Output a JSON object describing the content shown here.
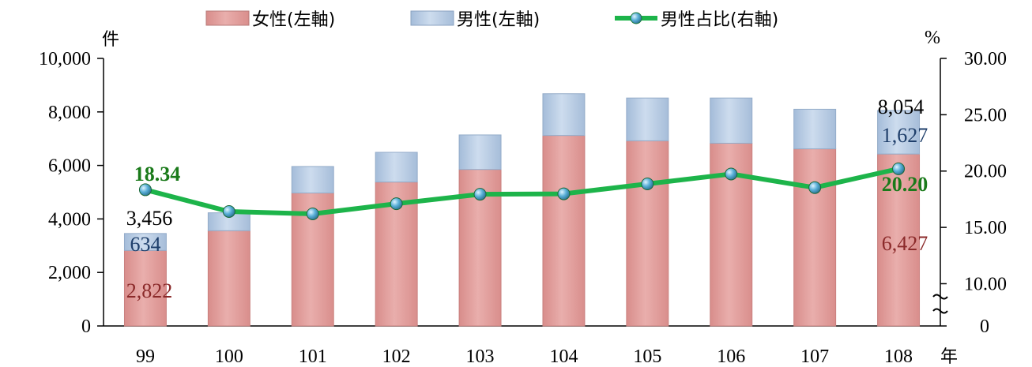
{
  "chart_data": {
    "type": "bar",
    "categories": [
      "99",
      "100",
      "101",
      "102",
      "103",
      "104",
      "105",
      "106",
      "107",
      "108"
    ],
    "series": [
      {
        "name": "女性(左軸)",
        "axis": "left",
        "kind": "stacked-bar",
        "values": [
          2822,
          3560,
          4970,
          5380,
          5850,
          7120,
          6920,
          6830,
          6620,
          6427
        ]
      },
      {
        "name": "男性(左軸)",
        "axis": "left",
        "kind": "stacked-bar",
        "values": [
          634,
          670,
          990,
          1110,
          1290,
          1560,
          1600,
          1690,
          1480,
          1627
        ]
      },
      {
        "name": "男性占比(右軸)",
        "axis": "right",
        "kind": "line",
        "values": [
          18.34,
          16.41,
          16.2,
          17.1,
          17.94,
          17.98,
          18.86,
          19.74,
          18.53,
          20.2
        ]
      }
    ],
    "left_axis": {
      "unit_label": "件",
      "min": 0,
      "max": 10000,
      "ticks": [
        "0",
        "2,000",
        "4,000",
        "6,000",
        "8,000",
        "10,000"
      ]
    },
    "right_axis": {
      "unit_label": "%",
      "broken": true,
      "ticks": [
        "0",
        "10.00",
        "15.00",
        "20.00",
        "25.00",
        "30.00"
      ],
      "scale_min": 6.25,
      "scale_max": 30
    },
    "x_axis_unit": "年",
    "annotations": {
      "first_total": "3,456",
      "first_male": "634",
      "first_female": "2,822",
      "first_ratio": "18.34",
      "last_total": "8,054",
      "last_male": "1,627",
      "last_female": "6,427",
      "last_ratio": "20.20"
    },
    "legend_position": "top",
    "colors": {
      "female": "#e3a09e",
      "male": "#b8cde4",
      "line": "#1db44a",
      "marker": "#5ab0d8",
      "female_text": "#8b2a2a",
      "male_text": "#1f3f6b",
      "ratio_text": "#1a7a1a"
    }
  }
}
